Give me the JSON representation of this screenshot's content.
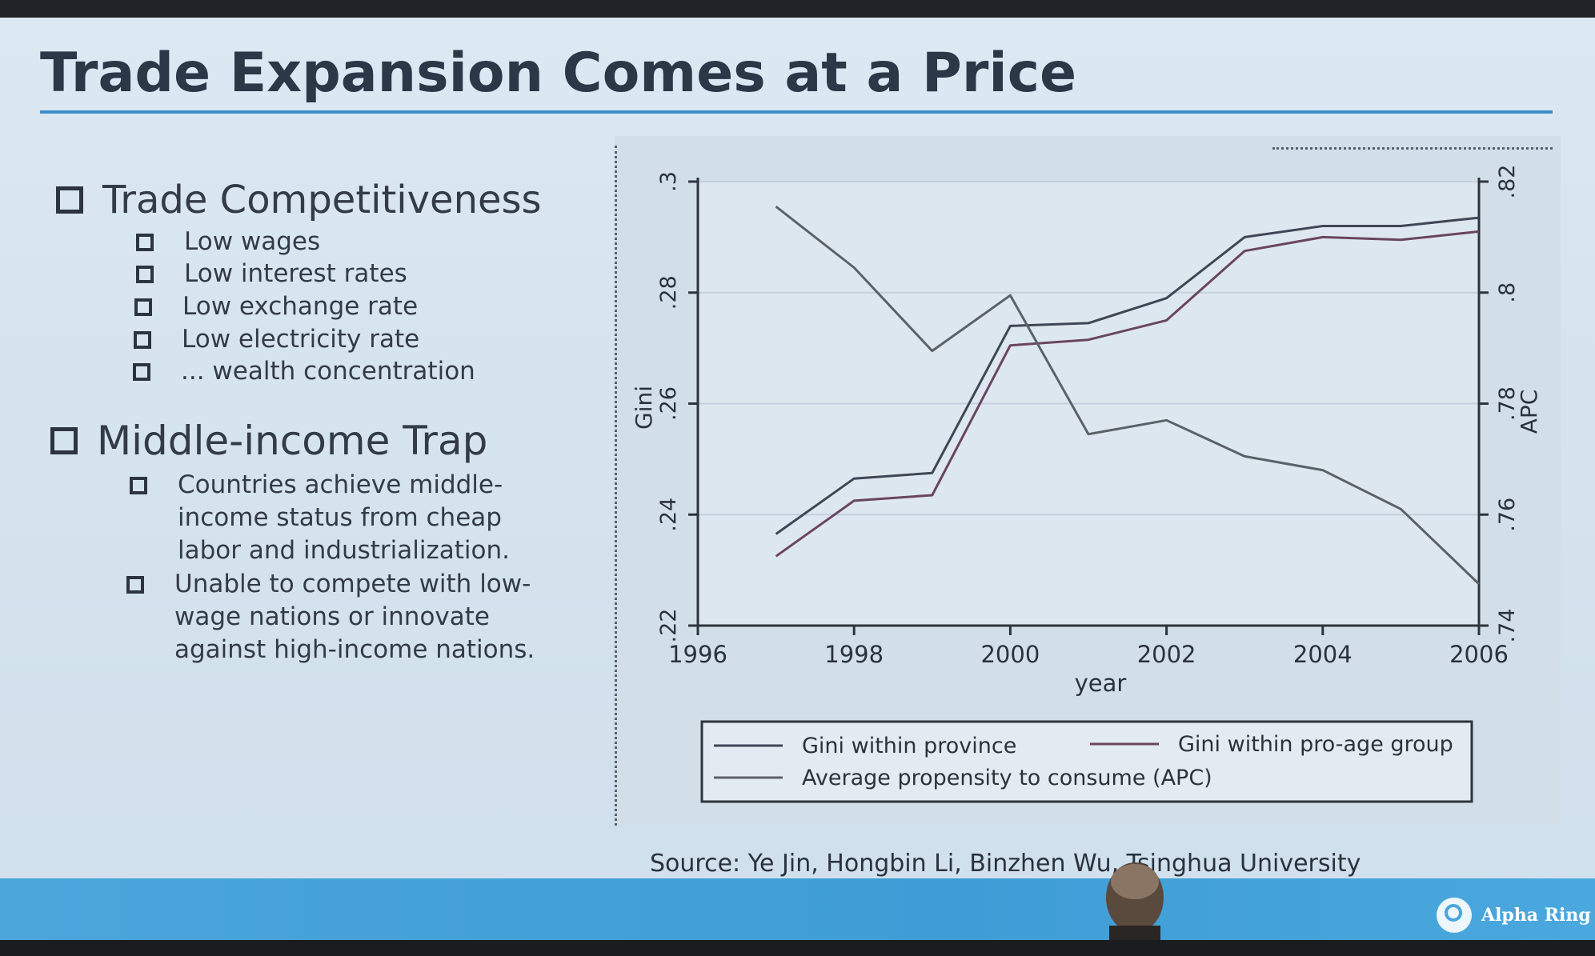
{
  "slide": {
    "title": "Trade Expansion Comes at a Price",
    "sections": [
      {
        "heading": "Trade Competitiveness",
        "items": [
          [
            "Low wages"
          ],
          [
            "Low interest rates"
          ],
          [
            "Low exchange rate"
          ],
          [
            "Low electricity rate"
          ],
          [
            "... wealth concentration"
          ]
        ]
      },
      {
        "heading": "Middle-income Trap",
        "items": [
          [
            "Countries achieve middle-",
            "income status from cheap",
            "labor and industrialization."
          ],
          [
            "Unable to compete with low-",
            "wage nations or innovate",
            "against high-income nations."
          ]
        ]
      }
    ],
    "source": "Source: Ye Jin, Hongbin Li, Binzhen Wu, Tsinghua University",
    "logo_text": "Alpha Ring"
  },
  "chart_data": {
    "type": "line",
    "title": "",
    "xlabel": "year",
    "ylabel_left": "Gini",
    "ylabel_right": "APC",
    "xlim": [
      1996,
      2006
    ],
    "x_ticks": [
      1996,
      1998,
      2000,
      2002,
      2004,
      2006
    ],
    "ylim_left": [
      0.22,
      0.3
    ],
    "y_ticks_left": [
      0.22,
      0.24,
      0.26,
      0.28,
      0.3
    ],
    "y_tick_labels_left": [
      ".22",
      ".24",
      ".26",
      ".28",
      ".3"
    ],
    "ylim_right": [
      0.74,
      0.82
    ],
    "y_ticks_right": [
      0.74,
      0.76,
      0.78,
      0.8,
      0.82
    ],
    "y_tick_labels_right": [
      ".74",
      ".76",
      ".78",
      ".8",
      ".82"
    ],
    "grid": true,
    "legend_position": "bottom",
    "series": [
      {
        "name": "Gini within province",
        "axis": "left",
        "color": "#3f4656",
        "x": [
          1997,
          1998,
          1999,
          2000,
          2001,
          2002,
          2003,
          2004,
          2005,
          2006
        ],
        "values": [
          0.2365,
          0.2465,
          0.2475,
          0.274,
          0.2745,
          0.279,
          0.29,
          0.292,
          0.292,
          0.2935
        ]
      },
      {
        "name": "Gini within pro-age group",
        "axis": "left",
        "color": "#6a4560",
        "x": [
          1997,
          1998,
          1999,
          2000,
          2001,
          2002,
          2003,
          2004,
          2005,
          2006
        ],
        "values": [
          0.2325,
          0.2425,
          0.2435,
          0.2705,
          0.2715,
          0.275,
          0.2875,
          0.29,
          0.2895,
          0.291
        ]
      },
      {
        "name": "Average propensity to consume (APC)",
        "axis": "right",
        "color": "#5c6168",
        "x": [
          1997,
          1998,
          1999,
          2000,
          2001,
          2002,
          2003,
          2004,
          2005,
          2006
        ],
        "values": [
          0.8155,
          0.8045,
          0.7895,
          0.7995,
          0.7745,
          0.777,
          0.7705,
          0.768,
          0.761,
          0.7475
        ]
      }
    ]
  }
}
